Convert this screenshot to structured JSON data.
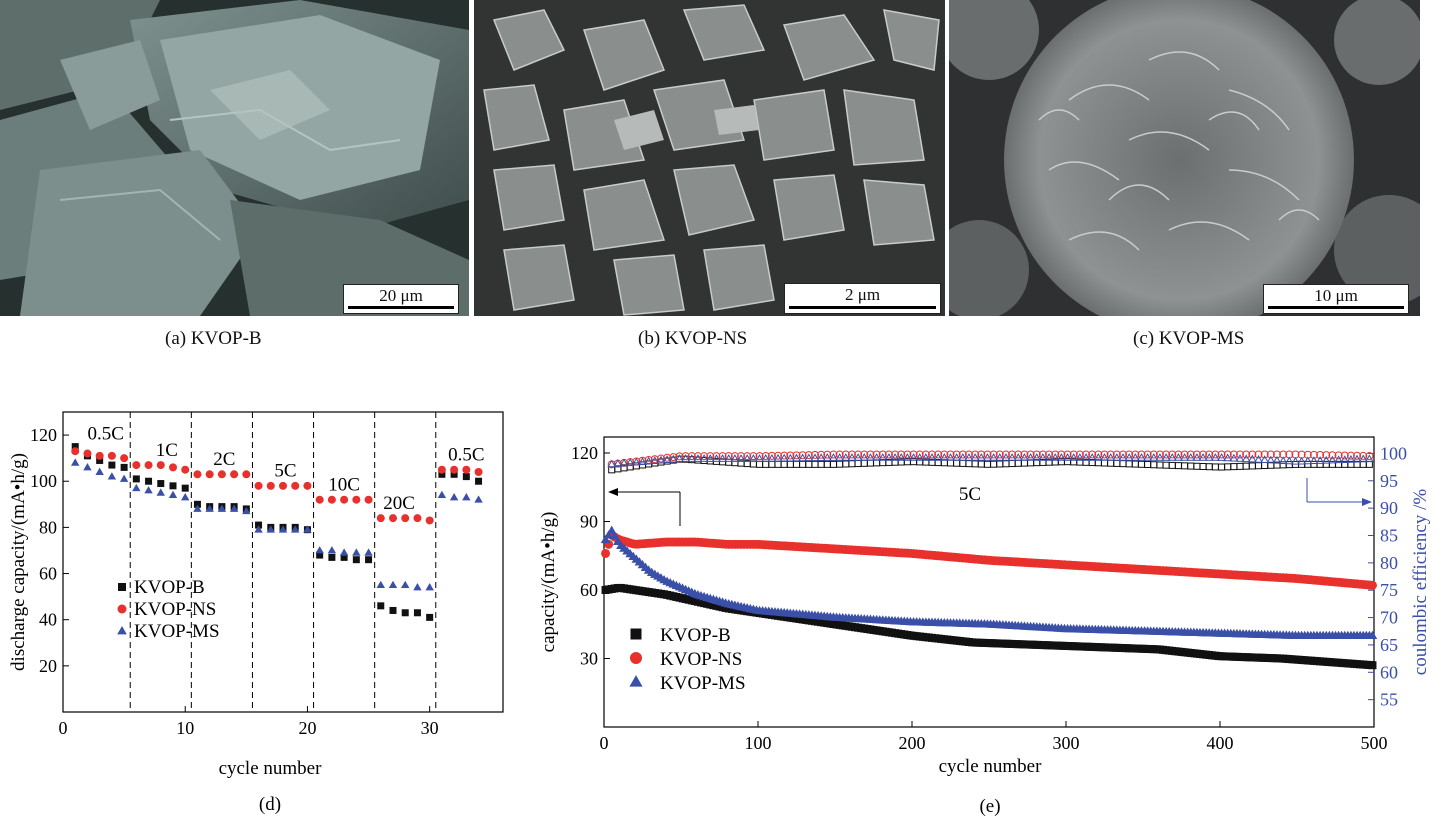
{
  "panels": {
    "a": {
      "caption": "(a) KVOP-B",
      "scale": "20  μm"
    },
    "b": {
      "caption": "(b) KVOP-NS",
      "scale": "2  μm"
    },
    "c": {
      "caption": "(c) KVOP-MS",
      "scale": "10  μm"
    }
  },
  "colors": {
    "kvop_b": "#111111",
    "kvop_ns": "#e8302c",
    "kvop_ms": "#3a4fa8",
    "axis_right": "#3a4fa8"
  },
  "chart_d": {
    "caption": "(d)",
    "chart_data": {
      "type": "scatter",
      "xlabel": "cycle number",
      "ylabel": "discharge capacity/(mA•h/g)",
      "xlim": [
        0,
        36
      ],
      "ylim": [
        0,
        130
      ],
      "xticks": [
        0,
        10,
        20,
        30
      ],
      "yticks": [
        20,
        40,
        60,
        80,
        100,
        120
      ],
      "dividers": [
        5.5,
        10.5,
        15.5,
        20.5,
        25.5,
        30.5
      ],
      "rate_labels": [
        {
          "text": "0.5C",
          "x": 3.5,
          "y": 118
        },
        {
          "text": "1C",
          "x": 8.5,
          "y": 111
        },
        {
          "text": "2C",
          "x": 13.2,
          "y": 107
        },
        {
          "text": "5C",
          "x": 18.2,
          "y": 102
        },
        {
          "text": "10C",
          "x": 23.0,
          "y": 96
        },
        {
          "text": "20C",
          "x": 27.5,
          "y": 88
        },
        {
          "text": "0.5C",
          "x": 33.0,
          "y": 109
        }
      ],
      "legend": [
        "KVOP-B",
        "KVOP-NS",
        "KVOP-MS"
      ],
      "series": [
        {
          "name": "KVOP-B",
          "x": [
            1,
            2,
            3,
            4,
            5,
            6,
            7,
            8,
            9,
            10,
            11,
            12,
            13,
            14,
            15,
            16,
            17,
            18,
            19,
            20,
            21,
            22,
            23,
            24,
            25,
            26,
            27,
            28,
            29,
            30,
            31,
            32,
            33,
            34
          ],
          "y": [
            115,
            111,
            109,
            107,
            106,
            101,
            100,
            99,
            98,
            97,
            90,
            89,
            89,
            89,
            88,
            81,
            80,
            80,
            80,
            79,
            68,
            67,
            67,
            66,
            66,
            46,
            44,
            43,
            43,
            41,
            103,
            103,
            102,
            100
          ]
        },
        {
          "name": "KVOP-NS",
          "x": [
            1,
            2,
            3,
            4,
            5,
            6,
            7,
            8,
            9,
            10,
            11,
            12,
            13,
            14,
            15,
            16,
            17,
            18,
            19,
            20,
            21,
            22,
            23,
            24,
            25,
            26,
            27,
            28,
            29,
            30,
            31,
            32,
            33,
            34
          ],
          "y": [
            113,
            112,
            111,
            111,
            110,
            107,
            107,
            107,
            106,
            105,
            103,
            103,
            103,
            103,
            103,
            98,
            98,
            98,
            98,
            98,
            92,
            92,
            92,
            92,
            92,
            84,
            84,
            84,
            84,
            83,
            105,
            105,
            105,
            104
          ]
        },
        {
          "name": "KVOP-MS",
          "x": [
            1,
            2,
            3,
            4,
            5,
            6,
            7,
            8,
            9,
            10,
            11,
            12,
            13,
            14,
            15,
            16,
            17,
            18,
            19,
            20,
            21,
            22,
            23,
            24,
            25,
            26,
            27,
            28,
            29,
            30,
            31,
            32,
            33,
            34
          ],
          "y": [
            108,
            106,
            104,
            102,
            101,
            97,
            96,
            95,
            94,
            93,
            88,
            88,
            88,
            88,
            87,
            79,
            79,
            79,
            79,
            79,
            70,
            70,
            69,
            69,
            69,
            55,
            55,
            55,
            54,
            54,
            94,
            93,
            93,
            92
          ]
        }
      ]
    }
  },
  "chart_e": {
    "caption": "(e)",
    "chart_data": {
      "type": "scatter",
      "xlabel": "cycle number",
      "ylabel": "capacity/(mA•h/g)",
      "ylabel_right": "coulombic efficiency /%",
      "annotation": "5C",
      "xlim": [
        0,
        500
      ],
      "ylim": [
        0,
        127
      ],
      "ylim_right": [
        50,
        103
      ],
      "xticks": [
        100,
        200,
        300,
        400,
        500
      ],
      "yticks": [
        30,
        60,
        90,
        120
      ],
      "yticks_right": [
        55,
        60,
        65,
        70,
        75,
        80,
        85,
        90,
        95,
        100
      ],
      "legend": [
        "KVOP-B",
        "KVOP-NS",
        "KVOP-MS"
      ],
      "series": [
        {
          "name": "KVOP-B",
          "axis": "left",
          "x": [
            1,
            10,
            20,
            40,
            60,
            80,
            100,
            130,
            160,
            200,
            240,
            280,
            320,
            360,
            400,
            440,
            480,
            500
          ],
          "y": [
            60,
            61,
            60,
            58,
            55,
            52,
            50,
            47,
            44,
            40,
            37,
            36,
            35,
            34,
            31,
            30,
            28,
            27
          ]
        },
        {
          "name": "KVOP-NS",
          "axis": "left",
          "x": [
            1,
            5,
            10,
            20,
            40,
            60,
            80,
            100,
            150,
            200,
            250,
            300,
            350,
            400,
            450,
            500
          ],
          "y": [
            76,
            84,
            82,
            80,
            81,
            81,
            80,
            80,
            78,
            76,
            73,
            71,
            69,
            67,
            65,
            62
          ]
        },
        {
          "name": "KVOP-MS",
          "axis": "left",
          "x": [
            1,
            5,
            10,
            20,
            30,
            40,
            60,
            80,
            100,
            150,
            200,
            250,
            300,
            350,
            400,
            450,
            500
          ],
          "y": [
            82,
            86,
            80,
            74,
            68,
            64,
            58,
            54,
            51,
            48,
            46,
            45,
            43,
            42,
            41,
            40,
            40
          ]
        },
        {
          "name": "KVOP-B CE",
          "axis": "right",
          "x": [
            5,
            50,
            100,
            150,
            200,
            250,
            300,
            350,
            400,
            450,
            500
          ],
          "y": [
            97,
            99,
            98,
            98,
            98.5,
            98,
            98.5,
            98,
            97.5,
            98,
            98
          ]
        },
        {
          "name": "KVOP-NS CE",
          "axis": "right",
          "x": [
            5,
            50,
            100,
            150,
            200,
            250,
            300,
            350,
            400,
            450,
            500
          ],
          "y": [
            98,
            99.5,
            99.5,
            99.8,
            99.8,
            99.8,
            99.8,
            99.8,
            99.8,
            99.8,
            99.5
          ]
        },
        {
          "name": "KVOP-MS CE",
          "axis": "right",
          "x": [
            5,
            50,
            100,
            150,
            200,
            250,
            300,
            350,
            400,
            450,
            500
          ],
          "y": [
            98,
            99,
            99,
            99.2,
            99.2,
            99.2,
            99.2,
            99.2,
            99.2,
            98.5,
            99
          ]
        }
      ]
    }
  }
}
